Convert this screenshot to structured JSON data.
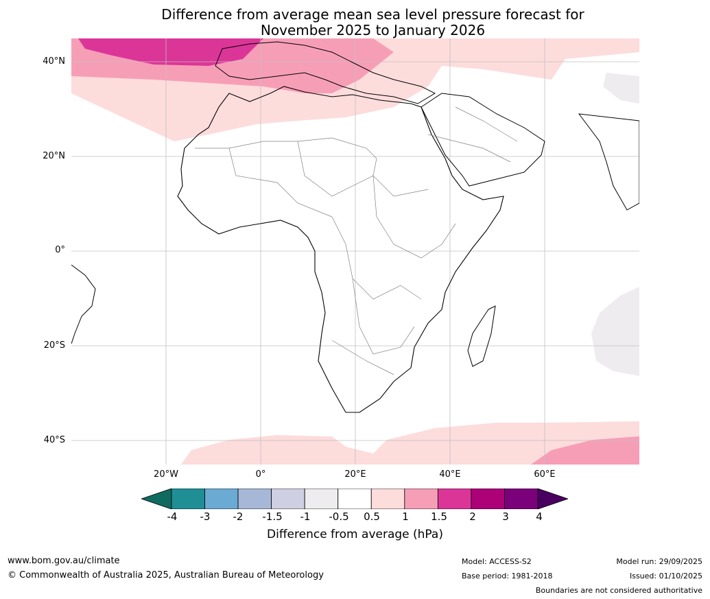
{
  "title_line1": "Difference from average mean sea level pressure forecast for",
  "title_line2": "November 2025 to January 2026",
  "lat_labels": [
    "40°N",
    "20°N",
    "0°",
    "20°S",
    "40°S"
  ],
  "lon_labels": [
    "20°W",
    "0°",
    "20°E",
    "40°E",
    "60°E"
  ],
  "colorbar": {
    "ticks": [
      "-4",
      "-3",
      "-2",
      "-1.5",
      "-1",
      "-0.5",
      "0.5",
      "1",
      "1.5",
      "2",
      "3",
      "4"
    ],
    "colors": [
      "#1f8f95",
      "#6baad2",
      "#a7b7d8",
      "#cfcfe3",
      "#efecf0",
      "#ffffff",
      "#fddcdc",
      "#f79eb7",
      "#dc3598",
      "#ad0177",
      "#7b017b"
    ],
    "under_color": "#0f6b60",
    "over_color": "#4a0060",
    "label": "Difference from average (hPa)"
  },
  "legend_colors": {
    "band_0_5_1": "#fddcdc",
    "band_1_1_5": "#f79eb7",
    "band_1_5_2": "#dc3598",
    "band_neg_0_5": "#efecf0",
    "band_neg_2": "#a7b7d8",
    "band_neg_3": "#6baad2"
  },
  "footer": {
    "website": "www.bom.gov.au/climate",
    "copyright": "© Commonwealth of Australia 2025, Australian Bureau of Meteorology",
    "model": "Model: ACCESS-S2",
    "base_period": "Base period: 1981-2018",
    "model_run": "Model run: 29/09/2025",
    "issued": "Issued: 01/10/2025",
    "disclaimer": "Boundaries are not considered authoritative"
  }
}
